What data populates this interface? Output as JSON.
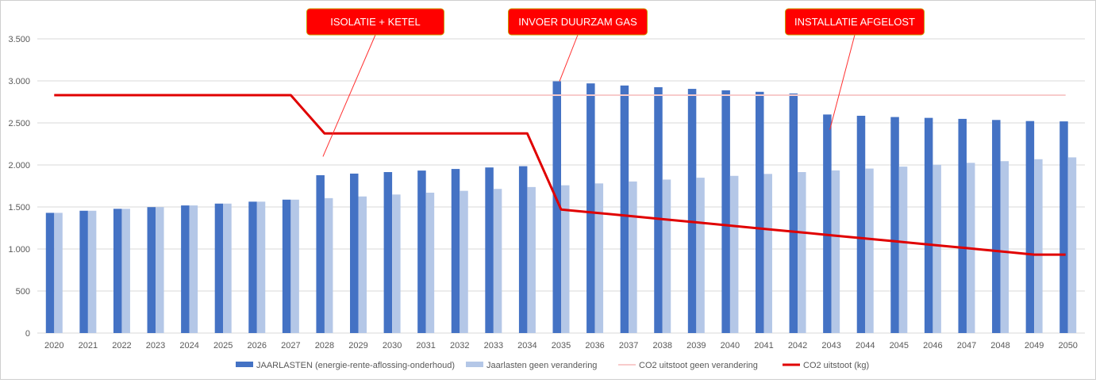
{
  "chart_data": {
    "type": "bar",
    "categories": [
      "2020",
      "2021",
      "2022",
      "2023",
      "2024",
      "2025",
      "2026",
      "2027",
      "2028",
      "2029",
      "2030",
      "2031",
      "2032",
      "2033",
      "2034",
      "2035",
      "2036",
      "2037",
      "2038",
      "2039",
      "2040",
      "2041",
      "2042",
      "2043",
      "2044",
      "2045",
      "2046",
      "2047",
      "2048",
      "2049",
      "2050"
    ],
    "ylim": [
      0,
      3500
    ],
    "yticks": [
      0,
      500,
      1000,
      1500,
      2000,
      2500,
      3000,
      3500
    ],
    "ytick_labels": [
      "0",
      "500",
      "1.000",
      "1.500",
      "2.000",
      "2.500",
      "3.000",
      "3.500"
    ],
    "grid": true,
    "legend_position": "bottom",
    "colors": {
      "jaarlasten": "#4472c4",
      "geen_verandering": "#b4c7e7",
      "co2_geen": "#f8cbcb",
      "co2": "#e00000",
      "callout_fill": "#ff0000",
      "callout_border": "#c89a00",
      "grid": "#d9d9d9"
    },
    "series": [
      {
        "name": "JAARLASTEN (energie-rente-aflossing-onderhoud)",
        "kind": "bar",
        "values": [
          1430,
          1455,
          1478,
          1498,
          1518,
          1540,
          1563,
          1587,
          1878,
          1897,
          1915,
          1933,
          1952,
          1970,
          1985,
          2995,
          2970,
          2945,
          2925,
          2905,
          2888,
          2870,
          2850,
          2600,
          2585,
          2570,
          2560,
          2548,
          2535,
          2522,
          2518
        ]
      },
      {
        "name": "Jaarlasten geen verandering",
        "kind": "bar",
        "values": [
          1430,
          1455,
          1478,
          1498,
          1518,
          1540,
          1563,
          1587,
          1605,
          1625,
          1648,
          1670,
          1692,
          1715,
          1737,
          1758,
          1780,
          1803,
          1826,
          1848,
          1870,
          1893,
          1915,
          1935,
          1957,
          1980,
          2002,
          2025,
          2045,
          2068,
          2090
        ]
      },
      {
        "name": "CO2 uitstoot geen verandering",
        "kind": "line",
        "values": [
          2830,
          2830,
          2830,
          2830,
          2830,
          2830,
          2830,
          2830,
          2830,
          2830,
          2830,
          2830,
          2830,
          2830,
          2830,
          2830,
          2830,
          2830,
          2830,
          2830,
          2830,
          2830,
          2830,
          2830,
          2830,
          2830,
          2830,
          2830,
          2830,
          2830,
          2830
        ]
      },
      {
        "name": "CO2 uitstoot (kg)",
        "kind": "line",
        "values": [
          2830,
          2830,
          2830,
          2830,
          2830,
          2830,
          2830,
          2830,
          2375,
          2375,
          2375,
          2375,
          2375,
          2375,
          2375,
          1470,
          1432,
          1393,
          1355,
          1317,
          1278,
          1240,
          1202,
          1163,
          1125,
          1087,
          1048,
          1010,
          972,
          933,
          933
        ]
      }
    ],
    "annotations": [
      {
        "label": "ISOLATIE + KETEL",
        "target_category": "2028",
        "target_value": 2100
      },
      {
        "label": "INVOER DUURZAM GAS",
        "target_category": "2035",
        "target_value": 2995
      },
      {
        "label": "INSTALLATIE AFGELOST",
        "target_category": "2043",
        "target_value": 2420
      }
    ]
  }
}
